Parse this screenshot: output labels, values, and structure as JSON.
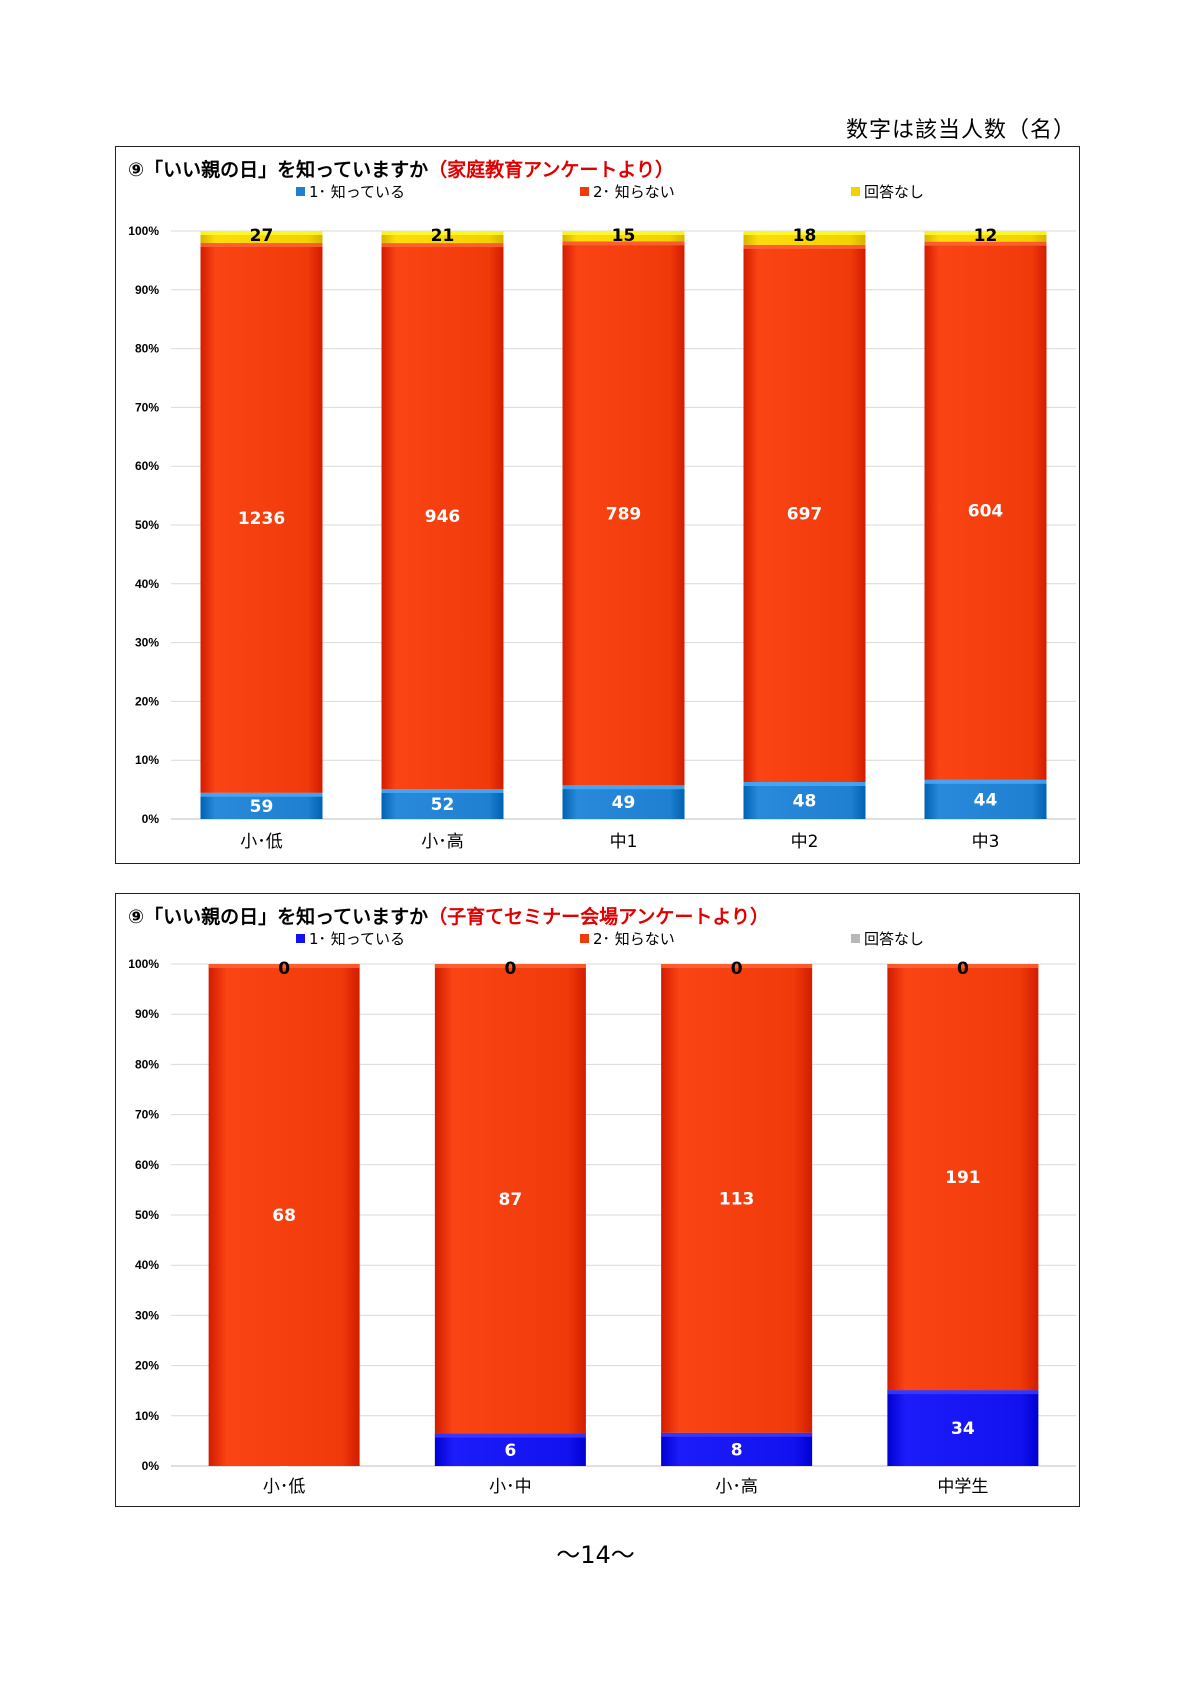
{
  "note": "数字は該当人数（名）",
  "page_number": "〜14〜",
  "chart_data": [
    {
      "type": "bar",
      "stacked": "percent",
      "title": "⑨「いい親の日」を知っていますか",
      "title_source": "（家庭教育アンケートより）",
      "categories": [
        "小･低",
        "小･高",
        "中1",
        "中2",
        "中3"
      ],
      "series": [
        {
          "name": "1･ 知っている",
          "color": "#1f7fd0",
          "values": [
            59,
            52,
            49,
            48,
            44
          ]
        },
        {
          "name": "2･ 知らない",
          "color": "#f03a0a",
          "values": [
            1236,
            946,
            789,
            697,
            604
          ]
        },
        {
          "name": "回答なし",
          "color": "#f2d200",
          "values": [
            27,
            21,
            15,
            18,
            12
          ]
        }
      ],
      "yticks": [
        "0%",
        "10%",
        "20%",
        "30%",
        "40%",
        "50%",
        "60%",
        "70%",
        "80%",
        "90%",
        "100%"
      ],
      "ylim": [
        0,
        100
      ],
      "grid": true,
      "legend": "top"
    },
    {
      "type": "bar",
      "stacked": "percent",
      "title": "⑨「いい親の日」を知っていますか",
      "title_source": "（子育てセミナー会場アンケートより）",
      "categories": [
        "小･低",
        "小･中",
        "小･高",
        "中学生"
      ],
      "series": [
        {
          "name": "1･ 知っている",
          "color": "#1212f0",
          "values": [
            0,
            6,
            8,
            34
          ]
        },
        {
          "name": "2･ 知らない",
          "color": "#f03a0a",
          "values": [
            68,
            87,
            113,
            191
          ]
        },
        {
          "name": "回答なし",
          "color": "#b8b8b8",
          "values": [
            0,
            0,
            0,
            0
          ]
        }
      ],
      "yticks": [
        "0%",
        "10%",
        "20%",
        "30%",
        "40%",
        "50%",
        "60%",
        "70%",
        "80%",
        "90%",
        "100%"
      ],
      "ylim": [
        0,
        100
      ],
      "grid": true,
      "legend": "top"
    }
  ]
}
